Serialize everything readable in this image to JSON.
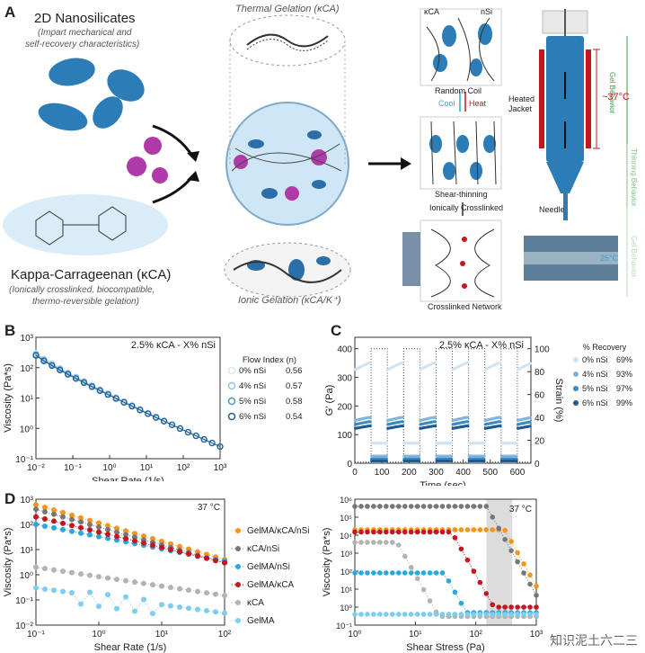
{
  "panelA": {
    "label": "A",
    "nanosilicates": {
      "title": "2D Nanosilicates",
      "subtitle_l1": "(Impart mechanical and",
      "subtitle_l2": "self-recovery characteristics)"
    },
    "kca": {
      "title": "Kappa-Carrageenan (κCA)",
      "subtitle_l1": "(Ionically crosslinked, biocompatible,",
      "subtitle_l2": "thermo-reversible gelation)"
    },
    "thermal_gelation": "Thermal Gelation (κCA)",
    "ionic_gelation": "Ionic Gelation (κCA/K⁺)",
    "schematic": {
      "label_kca": "κCA",
      "label_nsi": "nSi",
      "random_coil": "Random Coil",
      "cool": "Cool",
      "heat": "Heat",
      "shear_thinning": "Shear-thinning",
      "ionically_crosslinked": "Ionically  Crosslinked",
      "crosslinked_network": "Crosslinked Network"
    },
    "printer": {
      "heated_jacket_l1": "Heated",
      "heated_jacket_l2": "Jacket",
      "temp": "~37°C",
      "needle": "Needle",
      "photo_temp": "25°C",
      "side_gel": "Gel Behavior",
      "side_thinning": "Thinning Behavior",
      "side_gel2": "Gel Behavior"
    }
  },
  "panelB": {
    "label": "B",
    "title": "2.5% κCA - X% nSi",
    "legend_header": "Flow Index (n)",
    "chart_data": {
      "type": "line",
      "xlabel": "Shear Rate (1/s)",
      "ylabel": "Viscosity (Pa*s)",
      "xscale": "log",
      "yscale": "log",
      "xlim": [
        0.01,
        1000
      ],
      "ylim": [
        0.1,
        1000
      ],
      "xticks": [
        "10⁻²",
        "10⁻¹",
        "10⁰",
        "10¹",
        "10²",
        "10³"
      ],
      "yticks": [
        "10⁻¹",
        "10⁰",
        "10¹",
        "10²",
        "10³"
      ],
      "series": [
        {
          "name": "0% nSi",
          "n": "0.56",
          "color": "#d6e9f5",
          "y0": 300
        },
        {
          "name": "4% nSi",
          "n": "0.57",
          "color": "#8fc3e3",
          "y0": 280
        },
        {
          "name": "5% nSi",
          "n": "0.58",
          "color": "#4f97c9",
          "y0": 260
        },
        {
          "name": "6% nSi",
          "n": "0.54",
          "color": "#1f5e96",
          "y0": 250
        }
      ],
      "end_value": 0.25
    }
  },
  "panelC": {
    "label": "C",
    "title": "2.5% κCA - X% nSi",
    "legend_header": "% Recovery",
    "chart_data": {
      "type": "line",
      "xlabel": "Time (sec)",
      "ylabel": "G' (Pa)",
      "y2label": "Strain (%)",
      "xlim": [
        0,
        650
      ],
      "ylim": [
        0,
        440
      ],
      "y2lim": [
        0,
        110
      ],
      "xticks": [
        "0",
        "100",
        "200",
        "300",
        "400",
        "500",
        "600"
      ],
      "yticks": [
        "0",
        "100",
        "200",
        "300",
        "400"
      ],
      "y2ticks": [
        "0",
        "20",
        "40",
        "60",
        "80",
        "100"
      ],
      "series": [
        {
          "name": "0% nSi",
          "recovery": "69%",
          "color": "#cfe3f2",
          "level": 350,
          "low": 70
        },
        {
          "name": "4% nSi",
          "recovery": "93%",
          "color": "#7fb5dc",
          "level": 160,
          "low": 25
        },
        {
          "name": "5% nSi",
          "recovery": "97%",
          "color": "#3c8ac4",
          "level": 145,
          "low": 15
        },
        {
          "name": "6% nSi",
          "recovery": "99%",
          "color": "#1c5a94",
          "level": 130,
          "low": 8
        }
      ],
      "strain_high_intervals": [
        [
          60,
          120
        ],
        [
          180,
          240
        ],
        [
          300,
          360
        ],
        [
          420,
          480
        ],
        [
          540,
          600
        ]
      ]
    }
  },
  "panelD": {
    "label": "D",
    "temp_left": "37 °C",
    "temp_right": "37 °C",
    "left_chart": {
      "type": "line",
      "xlabel": "Shear Rate (1/s)",
      "ylabel": "Viscosity (Pa*s)",
      "xscale": "log",
      "yscale": "log",
      "xlim": [
        0.1,
        100
      ],
      "ylim": [
        0.01,
        1000
      ],
      "xticks": [
        "10⁻¹",
        "10⁰",
        "10¹",
        "10²"
      ],
      "yticks": [
        "10⁻²",
        "10⁻¹",
        "10⁰",
        "10¹",
        "10²",
        "10³"
      ],
      "series": [
        {
          "name": "GelMA/κCA/nSi",
          "color": "#f7941d",
          "start": 600,
          "end": 4
        },
        {
          "name": "κCA/nSi",
          "color": "#777777",
          "start": 400,
          "end": 3
        },
        {
          "name": "GelMA/nSi",
          "color": "#29a8e0",
          "start": 100,
          "end": 3.5
        },
        {
          "name": "GelMA/κCA",
          "color": "#c4161c",
          "start": 200,
          "end": 3
        },
        {
          "name": "κCA",
          "color": "#b3b3b3",
          "start": 2,
          "end": 0.15
        },
        {
          "name": "GelMA",
          "color": "#7fcdee",
          "start": 0.3,
          "end": 0.03
        }
      ]
    },
    "right_chart": {
      "type": "line",
      "xlabel": "Shear Stress (Pa)",
      "ylabel": "Viscosity (Pa*s)",
      "xscale": "log",
      "yscale": "log",
      "xlim": [
        1,
        1000
      ],
      "ylim": [
        0.1,
        1000000
      ],
      "xticks": [
        "10⁰",
        "10¹",
        "10²",
        "10³"
      ],
      "yticks": [
        "10⁻¹",
        "10⁰",
        "10¹",
        "10²",
        "10³",
        "10⁴",
        "10⁵",
        "10⁶"
      ],
      "shaded_region": [
        150,
        400
      ]
    }
  },
  "watermark": "知识泥土六二三"
}
